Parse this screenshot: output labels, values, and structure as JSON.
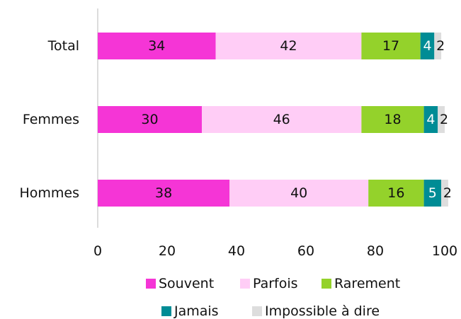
{
  "chart_data": {
    "type": "bar",
    "orientation": "horizontal",
    "stacked": true,
    "categories": [
      "Total",
      "Femmes",
      "Hommes"
    ],
    "series": [
      {
        "name": "Souvent",
        "values": [
          34,
          30,
          38
        ],
        "color": "#f535d6"
      },
      {
        "name": "Parfois",
        "values": [
          42,
          46,
          40
        ],
        "color": "#ffcdf6"
      },
      {
        "name": "Rarement",
        "values": [
          17,
          18,
          16
        ],
        "color": "#94d22b"
      },
      {
        "name": "Jamais",
        "values": [
          4,
          4,
          5
        ],
        "color": "#008c95"
      },
      {
        "name": "Impossible à dire",
        "values": [
          2,
          2,
          2
        ],
        "color": "#dddddd"
      }
    ],
    "xlim": [
      0,
      100
    ],
    "xticks": [
      0,
      20,
      40,
      60,
      80,
      100
    ],
    "grid": false,
    "legend_position": "bottom"
  }
}
